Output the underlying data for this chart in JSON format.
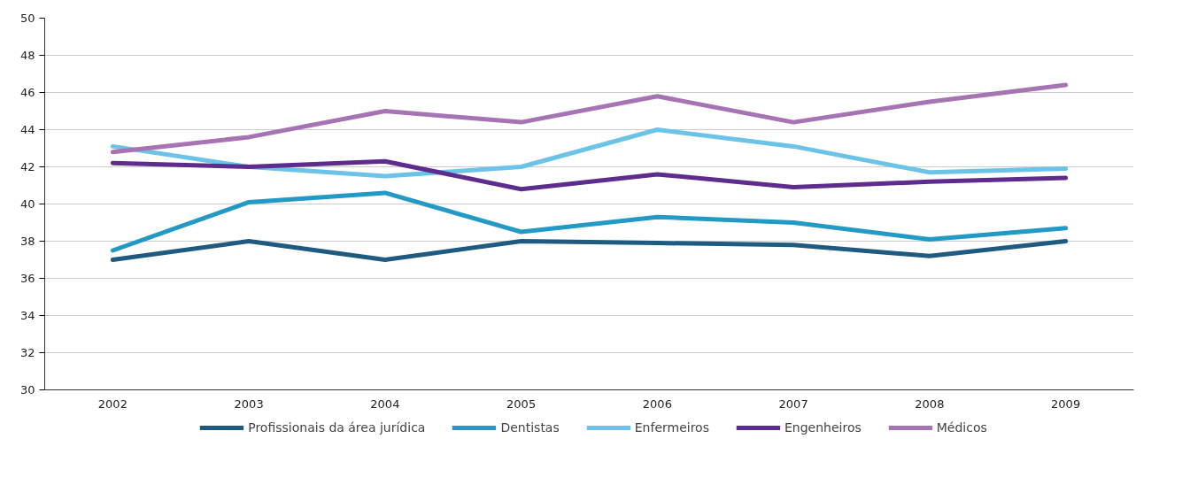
{
  "chart_data": {
    "type": "line",
    "categories": [
      "2002",
      "2003",
      "2004",
      "2005",
      "2006",
      "2007",
      "2008",
      "2009"
    ],
    "series": [
      {
        "name": "Profissionais da área jurídica",
        "color": "#1f5a80",
        "values": [
          37.0,
          38.0,
          37.0,
          38.0,
          37.9,
          37.8,
          37.2,
          38.0
        ]
      },
      {
        "name": "Dentistas",
        "color": "#2399c6",
        "values": [
          37.5,
          40.1,
          40.6,
          38.5,
          39.3,
          39.0,
          38.1,
          38.7
        ]
      },
      {
        "name": "Enfermeiros",
        "color": "#6bc3e8",
        "values": [
          43.1,
          42.0,
          41.5,
          42.0,
          44.0,
          43.1,
          41.7,
          41.9
        ]
      },
      {
        "name": "Engenheiros",
        "color": "#5e2c8c",
        "values": [
          42.2,
          42.0,
          42.3,
          40.8,
          41.6,
          40.9,
          41.2,
          41.4
        ]
      },
      {
        "name": "Médicos",
        "color": "#a673b3",
        "values": [
          42.8,
          43.6,
          45.0,
          44.4,
          45.8,
          44.4,
          45.5,
          46.4
        ]
      }
    ],
    "ylim": [
      30,
      50
    ],
    "yticks": [
      30,
      32,
      34,
      36,
      38,
      40,
      42,
      44,
      46,
      48,
      50
    ],
    "grid": "y",
    "legend": "bottom",
    "marker": "none",
    "line_style": "solid"
  }
}
